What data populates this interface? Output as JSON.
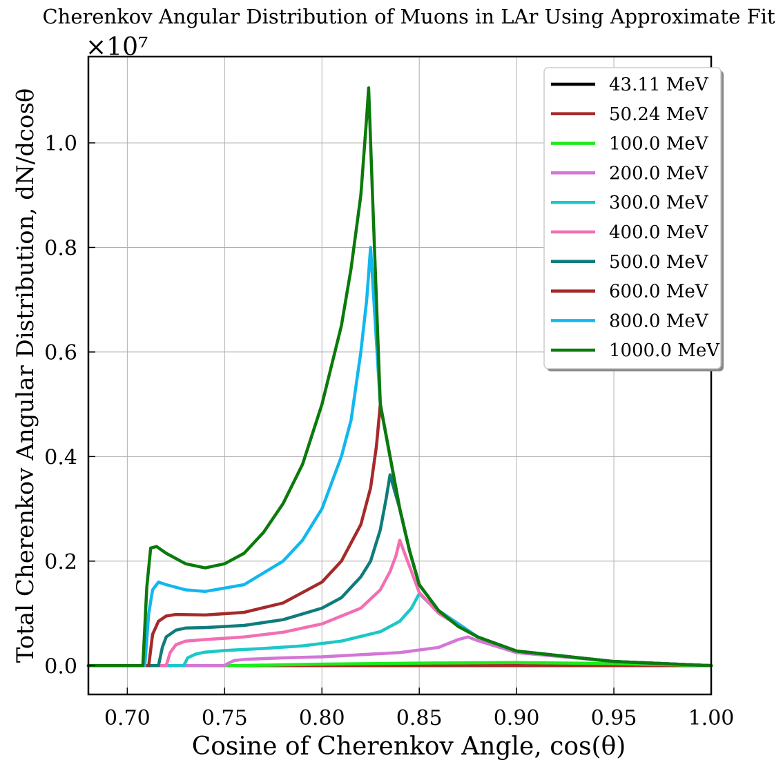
{
  "chart_data": {
    "type": "line",
    "title": "Cherenkov Angular Distribution of Muons in LAr Using Approximate Fit",
    "xlabel": "Cosine of Cherenkov Angle, cos(θ)",
    "ylabel": "Total Cherenkov Angular Distribution, dN/dcosθ",
    "y_scale_label": "×10⁷",
    "xlim": [
      0.68,
      1.0
    ],
    "ylim": [
      -0.055,
      1.165
    ],
    "y_multiplier": 10000000,
    "grid": true,
    "legend_position": "top-right",
    "x_ticks": [
      "0.70",
      "0.75",
      "0.80",
      "0.85",
      "0.90",
      "0.95",
      "1.00"
    ],
    "y_ticks": [
      "0.0",
      "0.2",
      "0.4",
      "0.6",
      "0.8",
      "1.0"
    ],
    "series": [
      {
        "name": "43.11 MeV",
        "color": "#000000",
        "points": [
          [
            0.68,
            0
          ],
          [
            1.0,
            0
          ]
        ]
      },
      {
        "name": "50.24 MeV",
        "color": "#a52a2a",
        "points": [
          [
            0.68,
            0
          ],
          [
            1.0,
            0
          ]
        ]
      },
      {
        "name": "100.0 MeV",
        "color": "#1aed1a",
        "points": [
          [
            0.68,
            0
          ],
          [
            0.755,
            0
          ],
          [
            0.8,
            0.003
          ],
          [
            0.85,
            0.005
          ],
          [
            0.9,
            0.006
          ],
          [
            0.95,
            0.004
          ],
          [
            1.0,
            0
          ]
        ]
      },
      {
        "name": "200.0 MeV",
        "color": "#d376d6",
        "points": [
          [
            0.68,
            0
          ],
          [
            0.75,
            0
          ],
          [
            0.751,
            0.003
          ],
          [
            0.755,
            0.01
          ],
          [
            0.76,
            0.012
          ],
          [
            0.78,
            0.015
          ],
          [
            0.8,
            0.017
          ],
          [
            0.82,
            0.021
          ],
          [
            0.84,
            0.025
          ],
          [
            0.86,
            0.035
          ],
          [
            0.87,
            0.05
          ],
          [
            0.875,
            0.055
          ],
          [
            0.88,
            0.048
          ],
          [
            0.9,
            0.025
          ],
          [
            0.95,
            0.008
          ],
          [
            1.0,
            0
          ]
        ]
      },
      {
        "name": "300.0 MeV",
        "color": "#1cc7c7",
        "points": [
          [
            0.68,
            0
          ],
          [
            0.729,
            0
          ],
          [
            0.731,
            0.015
          ],
          [
            0.735,
            0.022
          ],
          [
            0.74,
            0.026
          ],
          [
            0.75,
            0.029
          ],
          [
            0.77,
            0.033
          ],
          [
            0.79,
            0.038
          ],
          [
            0.81,
            0.047
          ],
          [
            0.83,
            0.065
          ],
          [
            0.84,
            0.085
          ],
          [
            0.846,
            0.11
          ],
          [
            0.85,
            0.138
          ],
          [
            0.855,
            0.12
          ],
          [
            0.865,
            0.09
          ],
          [
            0.88,
            0.055
          ],
          [
            0.9,
            0.028
          ],
          [
            0.95,
            0.008
          ],
          [
            1.0,
            0
          ]
        ]
      },
      {
        "name": "400.0 MeV",
        "color": "#f26fb3",
        "points": [
          [
            0.68,
            0
          ],
          [
            0.72,
            0
          ],
          [
            0.722,
            0.025
          ],
          [
            0.725,
            0.04
          ],
          [
            0.73,
            0.047
          ],
          [
            0.74,
            0.05
          ],
          [
            0.76,
            0.055
          ],
          [
            0.78,
            0.064
          ],
          [
            0.8,
            0.08
          ],
          [
            0.82,
            0.11
          ],
          [
            0.83,
            0.145
          ],
          [
            0.835,
            0.18
          ],
          [
            0.838,
            0.21
          ],
          [
            0.84,
            0.24
          ],
          [
            0.845,
            0.19
          ],
          [
            0.85,
            0.14
          ],
          [
            0.86,
            0.1
          ],
          [
            0.88,
            0.055
          ],
          [
            0.9,
            0.028
          ],
          [
            0.95,
            0.008
          ],
          [
            1.0,
            0
          ]
        ]
      },
      {
        "name": "500.0 MeV",
        "color": "#0f7c7c",
        "points": [
          [
            0.68,
            0
          ],
          [
            0.716,
            0
          ],
          [
            0.718,
            0.035
          ],
          [
            0.72,
            0.055
          ],
          [
            0.725,
            0.068
          ],
          [
            0.73,
            0.072
          ],
          [
            0.74,
            0.073
          ],
          [
            0.76,
            0.077
          ],
          [
            0.78,
            0.088
          ],
          [
            0.8,
            0.11
          ],
          [
            0.81,
            0.13
          ],
          [
            0.82,
            0.17
          ],
          [
            0.825,
            0.2
          ],
          [
            0.83,
            0.26
          ],
          [
            0.833,
            0.32
          ],
          [
            0.835,
            0.365
          ],
          [
            0.84,
            0.3
          ],
          [
            0.845,
            0.22
          ],
          [
            0.85,
            0.155
          ],
          [
            0.86,
            0.105
          ],
          [
            0.88,
            0.055
          ],
          [
            0.9,
            0.028
          ],
          [
            0.95,
            0.008
          ],
          [
            1.0,
            0
          ]
        ]
      },
      {
        "name": "600.0 MeV",
        "color": "#a52a2a",
        "points": [
          [
            0.68,
            0
          ],
          [
            0.711,
            0
          ],
          [
            0.713,
            0.06
          ],
          [
            0.716,
            0.085
          ],
          [
            0.72,
            0.095
          ],
          [
            0.725,
            0.098
          ],
          [
            0.74,
            0.097
          ],
          [
            0.76,
            0.102
          ],
          [
            0.78,
            0.12
          ],
          [
            0.8,
            0.16
          ],
          [
            0.81,
            0.2
          ],
          [
            0.82,
            0.27
          ],
          [
            0.825,
            0.34
          ],
          [
            0.828,
            0.42
          ],
          [
            0.83,
            0.5
          ],
          [
            0.835,
            0.4
          ],
          [
            0.84,
            0.3
          ],
          [
            0.845,
            0.22
          ],
          [
            0.85,
            0.155
          ],
          [
            0.86,
            0.105
          ],
          [
            0.88,
            0.055
          ],
          [
            0.9,
            0.028
          ],
          [
            0.95,
            0.008
          ],
          [
            1.0,
            0
          ]
        ]
      },
      {
        "name": "800.0 MeV",
        "color": "#12b7ee",
        "points": [
          [
            0.68,
            0
          ],
          [
            0.709,
            0
          ],
          [
            0.711,
            0.1
          ],
          [
            0.713,
            0.145
          ],
          [
            0.716,
            0.16
          ],
          [
            0.72,
            0.155
          ],
          [
            0.73,
            0.145
          ],
          [
            0.74,
            0.142
          ],
          [
            0.76,
            0.155
          ],
          [
            0.78,
            0.2
          ],
          [
            0.79,
            0.24
          ],
          [
            0.8,
            0.3
          ],
          [
            0.81,
            0.4
          ],
          [
            0.815,
            0.47
          ],
          [
            0.82,
            0.6
          ],
          [
            0.823,
            0.7
          ],
          [
            0.825,
            0.8
          ],
          [
            0.83,
            0.5
          ],
          [
            0.835,
            0.4
          ],
          [
            0.84,
            0.3
          ],
          [
            0.845,
            0.22
          ],
          [
            0.85,
            0.155
          ],
          [
            0.86,
            0.105
          ],
          [
            0.88,
            0.055
          ],
          [
            0.9,
            0.028
          ],
          [
            0.95,
            0.008
          ],
          [
            1.0,
            0
          ]
        ]
      },
      {
        "name": "1000.0 MeV",
        "color": "#0b7a0b",
        "points": [
          [
            0.68,
            0
          ],
          [
            0.708,
            0
          ],
          [
            0.71,
            0.15
          ],
          [
            0.712,
            0.225
          ],
          [
            0.715,
            0.228
          ],
          [
            0.72,
            0.215
          ],
          [
            0.73,
            0.195
          ],
          [
            0.74,
            0.187
          ],
          [
            0.75,
            0.195
          ],
          [
            0.76,
            0.215
          ],
          [
            0.77,
            0.255
          ],
          [
            0.78,
            0.31
          ],
          [
            0.79,
            0.385
          ],
          [
            0.8,
            0.5
          ],
          [
            0.81,
            0.65
          ],
          [
            0.815,
            0.76
          ],
          [
            0.82,
            0.9
          ],
          [
            0.823,
            1.05
          ],
          [
            0.824,
            1.105
          ],
          [
            0.826,
            0.9
          ],
          [
            0.83,
            0.5
          ],
          [
            0.835,
            0.4
          ],
          [
            0.84,
            0.3
          ],
          [
            0.845,
            0.22
          ],
          [
            0.85,
            0.155
          ],
          [
            0.86,
            0.105
          ],
          [
            0.87,
            0.075
          ],
          [
            0.88,
            0.055
          ],
          [
            0.9,
            0.028
          ],
          [
            0.95,
            0.008
          ],
          [
            1.0,
            0
          ]
        ]
      }
    ]
  }
}
